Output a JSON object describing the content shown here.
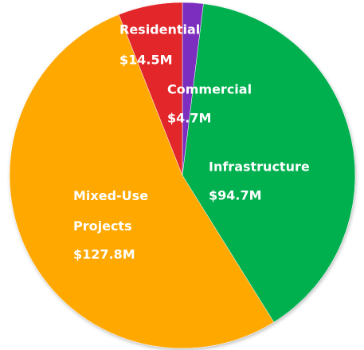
{
  "chart_data": {
    "type": "pie",
    "categories": [
      "Commercial",
      "Infrastructure",
      "Mixed-Use Projects",
      "Residential"
    ],
    "values": [
      4.7,
      94.7,
      127.8,
      14.5
    ],
    "value_labels": [
      "$4.7M",
      "$94.7M",
      "$127.8M",
      "$14.5M"
    ],
    "colors": [
      "#7b2fbe",
      "#00b050",
      "#ffa800",
      "#e3262a"
    ]
  }
}
